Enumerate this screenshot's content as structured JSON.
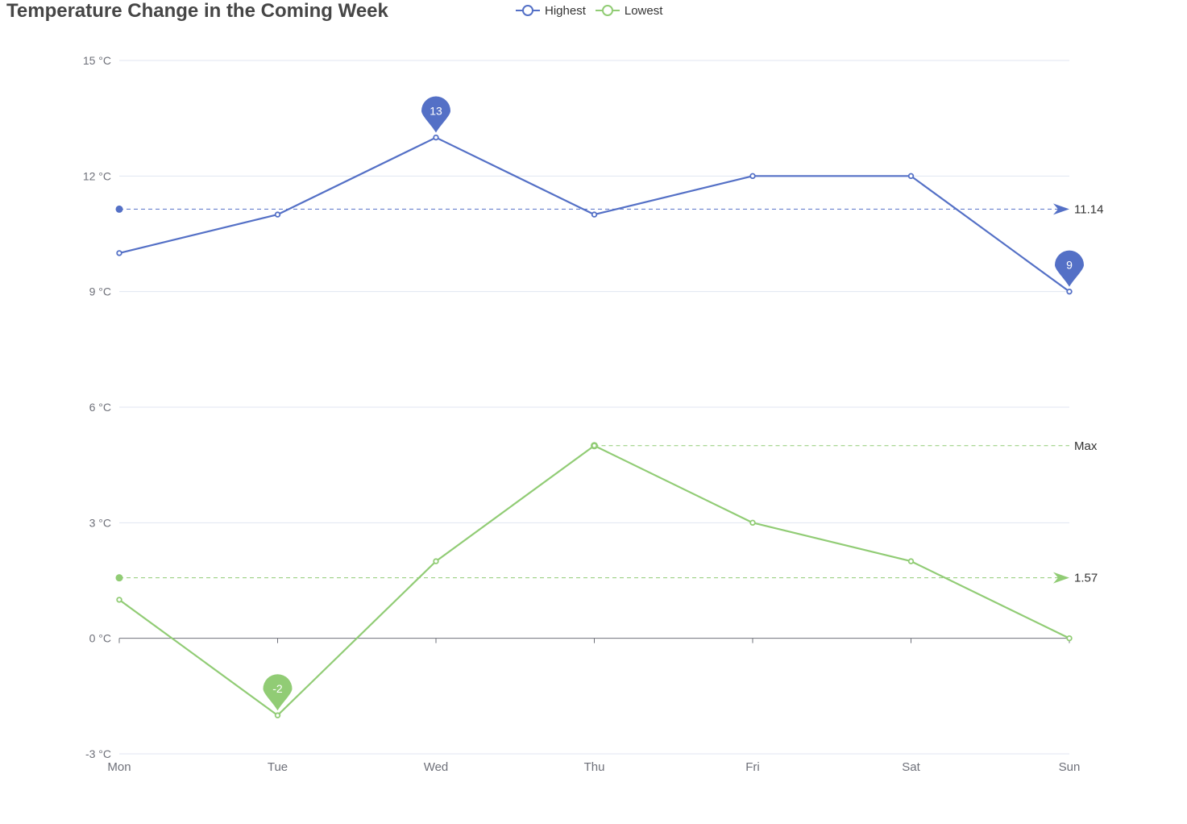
{
  "chart_data": {
    "type": "line",
    "title": "Temperature Change in the Coming Week",
    "categories": [
      "Mon",
      "Tue",
      "Wed",
      "Thu",
      "Fri",
      "Sat",
      "Sun"
    ],
    "y_ticks": [
      "15 °C",
      "12 °C",
      "9 °C",
      "6 °C",
      "3 °C",
      "0 °C",
      "-3 °C"
    ],
    "ylim": [
      -3,
      15
    ],
    "y_tick_values": [
      15,
      12,
      9,
      6,
      3,
      0,
      -3
    ],
    "grid": true,
    "legend_position": "top",
    "series": [
      {
        "name": "Highest",
        "color": "#5470c6",
        "values": [
          10,
          11,
          13,
          11,
          12,
          12,
          9
        ],
        "mark_points": [
          {
            "label": "13",
            "index": 2,
            "value": 13
          },
          {
            "label": "9",
            "index": 6,
            "value": 9
          }
        ],
        "average_line": {
          "value": 11.14,
          "label": "11.14"
        }
      },
      {
        "name": "Lowest",
        "color": "#91cc75",
        "values": [
          1,
          -2,
          2,
          5,
          3,
          2,
          0
        ],
        "mark_points": [
          {
            "label": "-2",
            "index": 1,
            "value": -2
          }
        ],
        "average_line": {
          "value": 1.57,
          "label": "1.57"
        },
        "max_line": {
          "value": 5,
          "index": 3,
          "label": "Max"
        }
      }
    ]
  }
}
